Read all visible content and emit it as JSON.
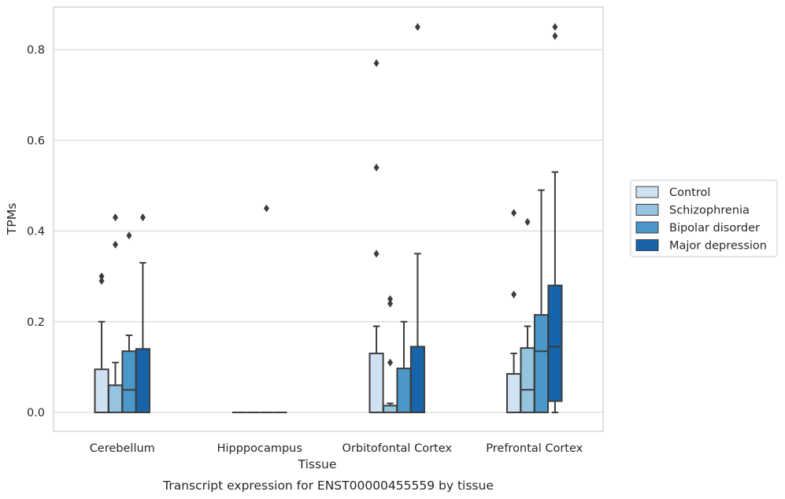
{
  "chart_data": {
    "type": "box",
    "title": "",
    "xlabel": "Tissue",
    "ylabel": "TPMs",
    "caption": "Transcript expression for ENST00000455559 by tissue",
    "ylim": [
      -0.042,
      0.895
    ],
    "yticks": [
      0.0,
      0.2,
      0.4,
      0.6,
      0.8
    ],
    "ytick_labels": [
      "0.0",
      "0.2",
      "0.4",
      "0.6",
      "0.8"
    ],
    "grid": "horizontal",
    "legend_position": "right",
    "categories": [
      "Cerebellum",
      "Hipppocampus",
      "Orbitofontal Cortex",
      "Prefrontal Cortex"
    ],
    "series": [
      {
        "name": "Control",
        "color": "#d0e1f2",
        "boxes": [
          {
            "category": "Cerebellum",
            "min": 0.0,
            "q1": 0.0,
            "median": 0.0,
            "q3": 0.095,
            "max": 0.2,
            "outliers": [
              0.29,
              0.3
            ]
          },
          {
            "category": "Hipppocampus",
            "min": 0.0,
            "q1": 0.0,
            "median": 0.0,
            "q3": 0.0,
            "max": 0.0,
            "outliers": []
          },
          {
            "category": "Orbitofontal Cortex",
            "min": 0.0,
            "q1": 0.0,
            "median": 0.0,
            "q3": 0.13,
            "max": 0.19,
            "outliers": [
              0.35,
              0.54,
              0.77
            ]
          },
          {
            "category": "Prefrontal Cortex",
            "min": 0.0,
            "q1": 0.0,
            "median": 0.0,
            "q3": 0.085,
            "max": 0.13,
            "outliers": [
              0.26,
              0.44
            ]
          }
        ]
      },
      {
        "name": "Schizophrenia",
        "color": "#94c4df",
        "boxes": [
          {
            "category": "Cerebellum",
            "min": 0.0,
            "q1": 0.0,
            "median": 0.0,
            "q3": 0.06,
            "max": 0.11,
            "outliers": [
              0.37,
              0.43
            ]
          },
          {
            "category": "Hipppocampus",
            "min": 0.0,
            "q1": 0.0,
            "median": 0.0,
            "q3": 0.0,
            "max": 0.0,
            "outliers": []
          },
          {
            "category": "Orbitofontal Cortex",
            "min": 0.0,
            "q1": 0.0,
            "median": 0.0,
            "q3": 0.015,
            "max": 0.02,
            "outliers": [
              0.11,
              0.24,
              0.25
            ]
          },
          {
            "category": "Prefrontal Cortex",
            "min": 0.0,
            "q1": 0.0,
            "median": 0.05,
            "q3": 0.142,
            "max": 0.19,
            "outliers": [
              0.42
            ]
          }
        ]
      },
      {
        "name": "Bipolar disorder",
        "color": "#4a98c9",
        "boxes": [
          {
            "category": "Cerebellum",
            "min": 0.0,
            "q1": 0.0,
            "median": 0.05,
            "q3": 0.135,
            "max": 0.17,
            "outliers": [
              0.39
            ]
          },
          {
            "category": "Hipppocampus",
            "min": 0.0,
            "q1": 0.0,
            "median": 0.0,
            "q3": 0.0,
            "max": 0.0,
            "outliers": [
              0.45
            ]
          },
          {
            "category": "Orbitofontal Cortex",
            "min": 0.0,
            "q1": 0.0,
            "median": 0.0,
            "q3": 0.097,
            "max": 0.2,
            "outliers": []
          },
          {
            "category": "Prefrontal Cortex",
            "min": 0.0,
            "q1": 0.0,
            "median": 0.135,
            "q3": 0.215,
            "max": 0.49,
            "outliers": []
          }
        ]
      },
      {
        "name": "Major depression",
        "color": "#1764ab",
        "boxes": [
          {
            "category": "Cerebellum",
            "min": 0.0,
            "q1": 0.0,
            "median": 0.0,
            "q3": 0.14,
            "max": 0.33,
            "outliers": [
              0.43
            ]
          },
          {
            "category": "Hipppocampus",
            "min": 0.0,
            "q1": 0.0,
            "median": 0.0,
            "q3": 0.0,
            "max": 0.0,
            "outliers": []
          },
          {
            "category": "Orbitofontal Cortex",
            "min": 0.0,
            "q1": 0.0,
            "median": 0.0,
            "q3": 0.145,
            "max": 0.35,
            "outliers": [
              0.85
            ]
          },
          {
            "category": "Prefrontal Cortex",
            "min": 0.0,
            "q1": 0.025,
            "median": 0.145,
            "q3": 0.28,
            "max": 0.53,
            "outliers": [
              0.83,
              0.85
            ]
          }
        ]
      }
    ]
  }
}
